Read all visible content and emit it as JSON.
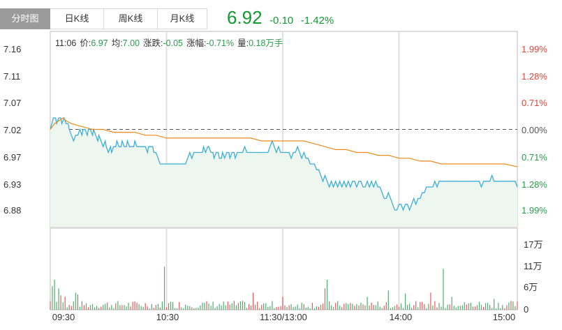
{
  "tabs": [
    {
      "label": "分时图",
      "active": true
    },
    {
      "label": "日K线",
      "active": false
    },
    {
      "label": "周K线",
      "active": false
    },
    {
      "label": "月K线",
      "active": false
    }
  ],
  "quote": {
    "price": "6.92",
    "change": "-0.10",
    "change_pct": "-1.42%",
    "color": "#119a32"
  },
  "info": {
    "time": "11:06",
    "price_label": "价:",
    "price": "6.97",
    "avg_label": "均:",
    "avg": "7.00",
    "change_label": "涨跌:",
    "change": "-0.05",
    "amplitude_label": "涨幅:",
    "amplitude": "-0.71%",
    "volume_label": "量:",
    "volume": "0.18万手"
  },
  "chart_data": {
    "type": "line",
    "prev_close": 7.02,
    "price_ticks": [
      "7.16",
      "7.11",
      "7.07",
      "7.02",
      "6.97",
      "6.93",
      "6.88"
    ],
    "pct_ticks": [
      "1.99%",
      "1.28%",
      "0.71%",
      "0.00%",
      "0.71%",
      "1.28%",
      "1.99%"
    ],
    "pct_tick_colors": [
      "#e0453c",
      "#e0453c",
      "#e0453c",
      "#555555",
      "#2a9d4b",
      "#2a9d4b",
      "#2a9d4b"
    ],
    "volume_ticks": [
      "17万",
      "11万",
      "6万",
      "0"
    ],
    "time_ticks": [
      "09:30",
      "10:30",
      "11:30/13:00",
      "14:00",
      "15:00"
    ],
    "ylim": [
      6.86,
      7.18
    ],
    "volume_max": 19,
    "price_color": "#3aaed8",
    "avg_color": "#ee8a1c",
    "up_color": "#e85a5a",
    "down_color": "#4fae6f",
    "grid": true,
    "price_points": [
      [
        0,
        7.02
      ],
      [
        3,
        7.04
      ],
      [
        5,
        7.04
      ],
      [
        6,
        7.03
      ],
      [
        8,
        7.04
      ],
      [
        10,
        7.04
      ],
      [
        11,
        7.03
      ],
      [
        13,
        7.04
      ],
      [
        15,
        7.03
      ],
      [
        17,
        7.03
      ],
      [
        18,
        7.02
      ],
      [
        20,
        7.01
      ],
      [
        22,
        7.0
      ],
      [
        24,
        7.01
      ],
      [
        26,
        7.01
      ],
      [
        28,
        7.02
      ],
      [
        30,
        7.01
      ],
      [
        31,
        7.02
      ],
      [
        33,
        7.02
      ],
      [
        35,
        7.01
      ],
      [
        36,
        7.02
      ],
      [
        38,
        7.02
      ],
      [
        40,
        7.01
      ],
      [
        41,
        7.02
      ],
      [
        43,
        7.01
      ],
      [
        45,
        7.0
      ],
      [
        46,
        7.01
      ],
      [
        48,
        7.0
      ],
      [
        50,
        6.99
      ],
      [
        52,
        7.0
      ],
      [
        53,
        6.99
      ],
      [
        55,
        6.98
      ],
      [
        57,
        6.99
      ],
      [
        58,
        6.98
      ],
      [
        60,
        6.99
      ],
      [
        62,
        6.99
      ],
      [
        63,
        7.0
      ],
      [
        65,
        6.99
      ],
      [
        67,
        6.99
      ],
      [
        68,
        7.0
      ],
      [
        70,
        6.99
      ],
      [
        72,
        6.99
      ],
      [
        73,
        7.0
      ],
      [
        75,
        6.99
      ],
      [
        77,
        6.99
      ],
      [
        79,
        6.99
      ],
      [
        80,
        7.0
      ],
      [
        82,
        6.99
      ],
      [
        84,
        6.99
      ],
      [
        86,
        6.99
      ],
      [
        88,
        6.99
      ],
      [
        90,
        6.99
      ],
      [
        92,
        6.98
      ],
      [
        93,
        6.99
      ],
      [
        95,
        6.99
      ],
      [
        97,
        6.99
      ],
      [
        98,
        6.98
      ],
      [
        100,
        6.98
      ],
      [
        102,
        6.97
      ],
      [
        104,
        6.96
      ],
      [
        106,
        6.96
      ],
      [
        108,
        6.96
      ],
      [
        110,
        6.96
      ],
      [
        112,
        6.96
      ],
      [
        114,
        6.96
      ],
      [
        116,
        6.96
      ],
      [
        118,
        6.96
      ],
      [
        120,
        6.96
      ],
      [
        122,
        6.96
      ],
      [
        124,
        6.96
      ],
      [
        126,
        6.96
      ],
      [
        128,
        6.96
      ],
      [
        130,
        6.97
      ],
      [
        132,
        6.98
      ],
      [
        134,
        6.97
      ],
      [
        136,
        6.98
      ],
      [
        138,
        6.98
      ],
      [
        140,
        6.98
      ],
      [
        142,
        6.98
      ],
      [
        144,
        6.98
      ],
      [
        145,
        6.99
      ],
      [
        147,
        6.98
      ],
      [
        149,
        6.99
      ],
      [
        150,
        6.99
      ],
      [
        152,
        6.98
      ],
      [
        154,
        6.98
      ],
      [
        155,
        6.97
      ],
      [
        157,
        6.98
      ],
      [
        159,
        6.98
      ],
      [
        160,
        6.97
      ],
      [
        162,
        6.97
      ],
      [
        163,
        6.98
      ],
      [
        165,
        6.97
      ],
      [
        167,
        6.98
      ],
      [
        169,
        6.98
      ],
      [
        170,
        6.97
      ],
      [
        172,
        6.98
      ],
      [
        174,
        6.98
      ],
      [
        175,
        6.97
      ],
      [
        177,
        6.98
      ],
      [
        179,
        6.98
      ],
      [
        180,
        6.98
      ],
      [
        182,
        6.98
      ],
      [
        184,
        6.99
      ],
      [
        186,
        6.98
      ],
      [
        188,
        6.98
      ],
      [
        190,
        6.98
      ],
      [
        192,
        6.98
      ],
      [
        194,
        6.98
      ],
      [
        196,
        6.98
      ],
      [
        198,
        6.98
      ],
      [
        200,
        6.98
      ],
      [
        202,
        6.98
      ],
      [
        204,
        6.98
      ],
      [
        206,
        6.98
      ],
      [
        208,
        6.99
      ],
      [
        210,
        7.0
      ],
      [
        212,
        6.99
      ],
      [
        214,
        6.98
      ],
      [
        216,
        6.99
      ],
      [
        218,
        6.98
      ],
      [
        220,
        6.98
      ],
      [
        222,
        6.98
      ],
      [
        224,
        6.98
      ],
      [
        226,
        6.98
      ],
      [
        228,
        6.97
      ],
      [
        230,
        6.98
      ],
      [
        232,
        6.98
      ],
      [
        234,
        6.99
      ],
      [
        236,
        6.98
      ],
      [
        238,
        6.97
      ],
      [
        240,
        6.98
      ],
      [
        242,
        6.97
      ],
      [
        244,
        6.97
      ],
      [
        246,
        6.96
      ],
      [
        248,
        6.96
      ],
      [
        250,
        6.96
      ],
      [
        252,
        6.95
      ],
      [
        254,
        6.95
      ],
      [
        256,
        6.94
      ],
      [
        258,
        6.93
      ],
      [
        260,
        6.94
      ],
      [
        262,
        6.93
      ],
      [
        264,
        6.92
      ],
      [
        266,
        6.93
      ],
      [
        268,
        6.92
      ],
      [
        270,
        6.93
      ],
      [
        272,
        6.92
      ],
      [
        274,
        6.93
      ],
      [
        276,
        6.92
      ],
      [
        278,
        6.93
      ],
      [
        280,
        6.92
      ],
      [
        282,
        6.93
      ],
      [
        284,
        6.92
      ],
      [
        286,
        6.93
      ],
      [
        288,
        6.93
      ],
      [
        290,
        6.92
      ],
      [
        292,
        6.93
      ],
      [
        294,
        6.93
      ],
      [
        296,
        6.92
      ],
      [
        298,
        6.92
      ],
      [
        300,
        6.93
      ],
      [
        302,
        6.92
      ],
      [
        304,
        6.93
      ],
      [
        306,
        6.92
      ],
      [
        308,
        6.93
      ],
      [
        310,
        6.92
      ],
      [
        312,
        6.92
      ],
      [
        314,
        6.91
      ],
      [
        316,
        6.9
      ],
      [
        318,
        6.9
      ],
      [
        320,
        6.91
      ],
      [
        322,
        6.9
      ],
      [
        324,
        6.89
      ],
      [
        326,
        6.88
      ],
      [
        328,
        6.88
      ],
      [
        330,
        6.89
      ],
      [
        332,
        6.89
      ],
      [
        334,
        6.88
      ],
      [
        336,
        6.89
      ],
      [
        338,
        6.89
      ],
      [
        340,
        6.88
      ],
      [
        342,
        6.89
      ],
      [
        344,
        6.9
      ],
      [
        346,
        6.89
      ],
      [
        348,
        6.9
      ],
      [
        350,
        6.9
      ],
      [
        352,
        6.91
      ],
      [
        354,
        6.91
      ],
      [
        356,
        6.92
      ],
      [
        358,
        6.92
      ],
      [
        360,
        6.92
      ],
      [
        362,
        6.92
      ],
      [
        364,
        6.93
      ],
      [
        366,
        6.92
      ],
      [
        368,
        6.93
      ],
      [
        370,
        6.93
      ],
      [
        372,
        6.93
      ],
      [
        374,
        6.93
      ],
      [
        376,
        6.93
      ],
      [
        378,
        6.93
      ],
      [
        380,
        6.93
      ],
      [
        382,
        6.93
      ],
      [
        384,
        6.93
      ],
      [
        386,
        6.93
      ],
      [
        388,
        6.93
      ],
      [
        390,
        6.93
      ],
      [
        392,
        6.93
      ],
      [
        394,
        6.93
      ],
      [
        396,
        6.93
      ],
      [
        398,
        6.93
      ],
      [
        400,
        6.93
      ],
      [
        402,
        6.93
      ],
      [
        404,
        6.93
      ],
      [
        406,
        6.93
      ],
      [
        408,
        6.92
      ],
      [
        410,
        6.93
      ],
      [
        412,
        6.93
      ],
      [
        414,
        6.93
      ],
      [
        416,
        6.93
      ],
      [
        418,
        6.94
      ],
      [
        420,
        6.93
      ],
      [
        422,
        6.93
      ],
      [
        424,
        6.93
      ],
      [
        426,
        6.93
      ],
      [
        428,
        6.93
      ],
      [
        430,
        6.93
      ],
      [
        432,
        6.93
      ],
      [
        434,
        6.93
      ],
      [
        436,
        6.93
      ],
      [
        438,
        6.93
      ],
      [
        440,
        6.93
      ],
      [
        442,
        6.92
      ]
    ],
    "avg_points": [
      [
        0,
        7.02
      ],
      [
        4,
        7.03
      ],
      [
        8,
        7.035
      ],
      [
        12,
        7.04
      ],
      [
        15,
        7.035
      ],
      [
        20,
        7.03
      ],
      [
        30,
        7.025
      ],
      [
        40,
        7.02
      ],
      [
        50,
        7.02
      ],
      [
        60,
        7.015
      ],
      [
        70,
        7.015
      ],
      [
        80,
        7.015
      ],
      [
        90,
        7.01
      ],
      [
        100,
        7.01
      ],
      [
        110,
        7.005
      ],
      [
        120,
        7.005
      ],
      [
        130,
        7.005
      ],
      [
        140,
        7.005
      ],
      [
        150,
        7.005
      ],
      [
        160,
        7.005
      ],
      [
        170,
        7.005
      ],
      [
        180,
        7.005
      ],
      [
        190,
        7.005
      ],
      [
        200,
        7.0
      ],
      [
        210,
        7.0
      ],
      [
        220,
        7.0
      ],
      [
        230,
        7.0
      ],
      [
        240,
        7.0
      ],
      [
        250,
        6.995
      ],
      [
        260,
        6.99
      ],
      [
        270,
        6.985
      ],
      [
        280,
        6.985
      ],
      [
        290,
        6.98
      ],
      [
        300,
        6.98
      ],
      [
        310,
        6.975
      ],
      [
        320,
        6.975
      ],
      [
        330,
        6.97
      ],
      [
        340,
        6.97
      ],
      [
        350,
        6.965
      ],
      [
        360,
        6.965
      ],
      [
        370,
        6.96
      ],
      [
        380,
        6.96
      ],
      [
        390,
        6.96
      ],
      [
        400,
        6.96
      ],
      [
        410,
        6.96
      ],
      [
        420,
        6.96
      ],
      [
        430,
        6.96
      ],
      [
        442,
        6.955
      ]
    ]
  }
}
